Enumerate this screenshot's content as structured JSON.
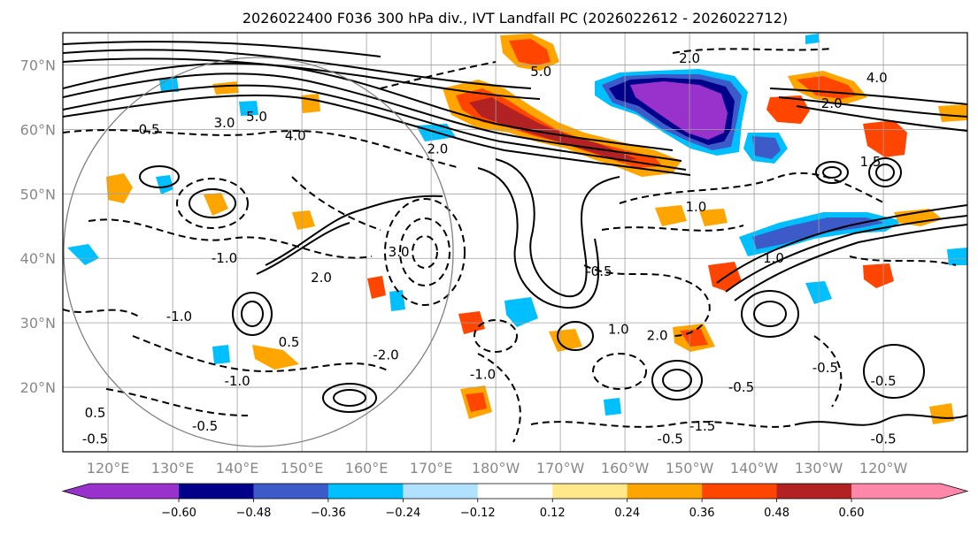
{
  "chart_data": {
    "type": "heatmap",
    "title": "2026022400 F036 300 hPa div., IVT Landfall PC (2026022612 - 2026022712)",
    "x_ticks": [
      "120°E",
      "130°E",
      "140°E",
      "150°E",
      "160°E",
      "170°E",
      "180°W",
      "170°W",
      "160°W",
      "150°W",
      "140°W",
      "130°W",
      "120°W"
    ],
    "x_values": [
      120,
      130,
      140,
      150,
      160,
      170,
      180,
      190,
      200,
      210,
      220,
      230,
      240
    ],
    "y_ticks": [
      "20°N",
      "30°N",
      "40°N",
      "50°N",
      "60°N",
      "70°N"
    ],
    "y_values": [
      20,
      30,
      40,
      50,
      60,
      70
    ],
    "xlim": [
      113,
      253
    ],
    "ylim": [
      10,
      75
    ],
    "grid": true,
    "colorbar": {
      "orientation": "horizontal",
      "extend": "both",
      "levels": [
        -0.6,
        -0.48,
        -0.36,
        -0.24,
        -0.12,
        0.12,
        0.24,
        0.36,
        0.48,
        0.6
      ],
      "level_labels": [
        "−0.60",
        "−0.48",
        "−0.36",
        "−0.24",
        "−0.12",
        "0.12",
        "0.24",
        "0.36",
        "0.48",
        "0.60"
      ],
      "colors": [
        "#9932cc",
        "#00008b",
        "#3c5ac8",
        "#00bfff",
        "#b0e2ff",
        "#ffffff",
        "#ffe88a",
        "#ffa500",
        "#ff4500",
        "#b22222",
        "#ff88aa"
      ]
    },
    "contour_labels": [
      {
        "text": "5.0",
        "lon": 187,
        "lat": 69
      },
      {
        "text": "5.0",
        "lon": 143,
        "lat": 62
      },
      {
        "text": "4.0",
        "lon": 149,
        "lat": 59
      },
      {
        "text": "3.0",
        "lon": 138,
        "lat": 61
      },
      {
        "text": "2.0",
        "lon": 210,
        "lat": 71
      },
      {
        "text": "4.0",
        "lon": 239,
        "lat": 68
      },
      {
        "text": "2.0",
        "lon": 232,
        "lat": 64
      },
      {
        "text": "1.5",
        "lon": 238,
        "lat": 55
      },
      {
        "text": "1.0",
        "lon": 211,
        "lat": 48
      },
      {
        "text": "1.0",
        "lon": 223,
        "lat": 40
      },
      {
        "text": "2.0",
        "lon": 171,
        "lat": 57
      },
      {
        "text": "-0.5",
        "lon": 126,
        "lat": 60
      },
      {
        "text": "-1.0",
        "lon": 138,
        "lat": 40
      },
      {
        "text": "-1.0",
        "lon": 131,
        "lat": 31
      },
      {
        "text": "2.0",
        "lon": 153,
        "lat": 37
      },
      {
        "text": "3.0",
        "lon": 165,
        "lat": 41
      },
      {
        "text": "-0.5",
        "lon": 196,
        "lat": 38
      },
      {
        "text": "0.5",
        "lon": 148,
        "lat": 27
      },
      {
        "text": "-2.0",
        "lon": 163,
        "lat": 25
      },
      {
        "text": "1.0",
        "lon": 199,
        "lat": 29
      },
      {
        "text": "-1.0",
        "lon": 140,
        "lat": 21
      },
      {
        "text": "-1.0",
        "lon": 178,
        "lat": 22
      },
      {
        "text": "-1.5",
        "lon": 212,
        "lat": 14
      },
      {
        "text": "-0.5",
        "lon": 207,
        "lat": 12
      },
      {
        "text": "-0.5",
        "lon": 218,
        "lat": 20
      },
      {
        "text": "-0.5",
        "lon": 231,
        "lat": 23
      },
      {
        "text": "-0.5",
        "lon": 240,
        "lat": 21
      },
      {
        "text": "-0.5",
        "lon": 118,
        "lat": 12
      },
      {
        "text": "-0.5",
        "lon": 135,
        "lat": 14
      },
      {
        "text": "0.5",
        "lon": 118,
        "lat": 16
      },
      {
        "text": "-0.5",
        "lon": 240,
        "lat": 12
      },
      {
        "text": "2.0",
        "lon": 205,
        "lat": 28
      }
    ]
  }
}
